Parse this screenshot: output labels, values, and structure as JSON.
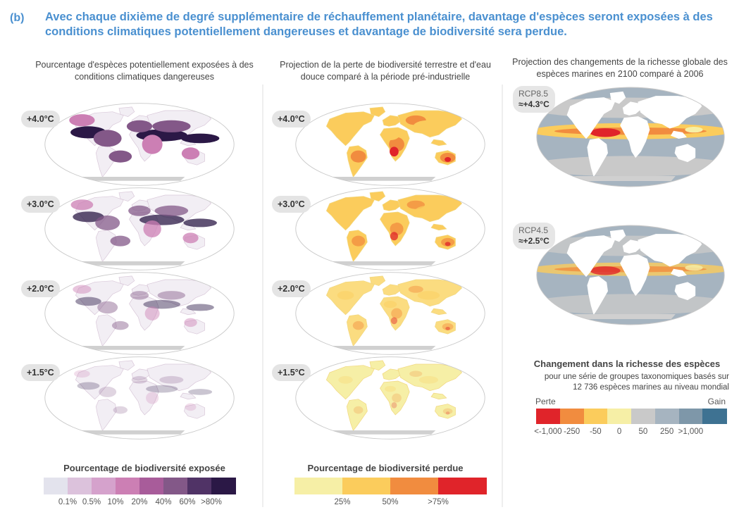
{
  "title": {
    "letter": "(b)",
    "text": "Avec chaque dixième de degré supplémentaire de réchauffement planétaire, davantage d'espèces seront exposées à des conditions climatiques potentiellement dangereuses et davantage de biodiversité sera perdue."
  },
  "columns": {
    "exposure_heading": "Pourcentage d'espèces potentiellement exposées à des conditions climatiques dangereuses",
    "loss_heading": "Projection de la perte de biodiversité terrestre et d'eau douce comparé à la période pré-industrielle",
    "marine_heading": "Projection des changements de la richesse globale des espèces marines en 2100 comparé à 2006"
  },
  "warming_levels": [
    "+4.0°C",
    "+3.0°C",
    "+2.0°C",
    "+1.5°C"
  ],
  "scenarios": [
    {
      "name": "RCP8.5",
      "warming": "≈+4.3°C"
    },
    {
      "name": "RCP4.5",
      "warming": "≈+2.5°C"
    }
  ],
  "legend_exposure": {
    "title": "Pourcentage de biodiversité exposée",
    "colors": [
      "#e3e3ed",
      "#dcc2dc",
      "#d5a2cc",
      "#cc7fb4",
      "#a85c9a",
      "#835888",
      "#503366",
      "#2b1846"
    ],
    "ticks": [
      "0.1%",
      "0.5%",
      "10%",
      "20%",
      "40%",
      "60%",
      ">80%"
    ]
  },
  "legend_loss": {
    "title": "Pourcentage de biodiversité perdue",
    "colors": [
      "#f6efa6",
      "#fbcc5c",
      "#f18c3f",
      "#e0242a"
    ],
    "ticks": [
      "25%",
      "50%",
      ">75%"
    ]
  },
  "legend_marine": {
    "title": "Changement dans la richesse des espèces",
    "subtitle": "pour une série de groupes taxonomiques basés sur 12 736 espèces marines au niveau mondial",
    "loss_label": "Perte",
    "gain_label": "Gain",
    "colors": [
      "#e0242a",
      "#f18c3f",
      "#fbcc5c",
      "#f6efa6",
      "#c9c9c9",
      "#a6b4c0",
      "#7e97a9",
      "#3e7292"
    ],
    "ticks": [
      "<-1,000",
      "-250",
      "-50",
      "0",
      "50",
      "250",
      ">1,000"
    ]
  }
}
